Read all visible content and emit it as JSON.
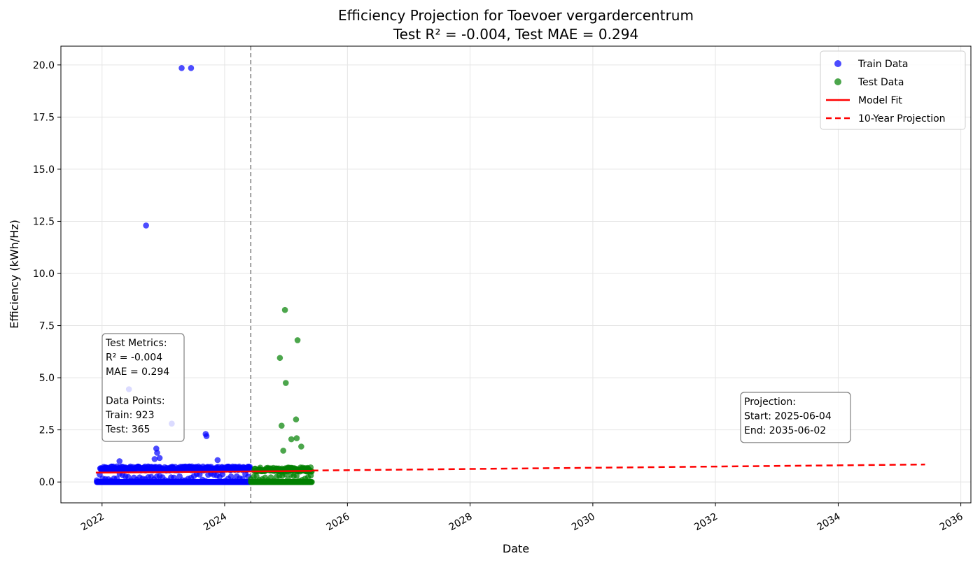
{
  "chart_data": {
    "type": "scatter",
    "title": "Efficiency Projection for Toevoer vergardercentrum",
    "subtitle": "Test R² = -0.004, Test MAE = 0.294",
    "xlabel": "Date",
    "ylabel": "Efficiency (kWh/Hz)",
    "x_scale": "date",
    "xlim": [
      "2021-05-01",
      "2036-03-01"
    ],
    "ylim": [
      -1.0,
      20.9
    ],
    "x_ticks": [
      "2022",
      "2024",
      "2026",
      "2028",
      "2030",
      "2032",
      "2034",
      "2036"
    ],
    "y_ticks": [
      "0.0",
      "2.5",
      "5.0",
      "7.5",
      "10.0",
      "12.5",
      "15.0",
      "17.5",
      "20.0"
    ],
    "y_tick_values": [
      0,
      2.5,
      5,
      7.5,
      10,
      12.5,
      15,
      17.5,
      20
    ],
    "grid": true,
    "legend_position": "top-right",
    "colors": {
      "train": "#0000ff",
      "test": "#008000",
      "fit": "#ff0000",
      "split": "#a0a0a0"
    },
    "series": [
      {
        "name": "Train Data",
        "marker": "circle",
        "range": [
          "2021-12-01",
          "2024-06-04"
        ],
        "typical_values": [
          0.0,
          0.55,
          0.75
        ],
        "points": [
          {
            "x": "2023-04-20",
            "y": 19.85
          },
          {
            "x": "2023-06-15",
            "y": 19.85
          },
          {
            "x": "2022-09-20",
            "y": 12.3
          },
          {
            "x": "2022-06-10",
            "y": 4.45
          },
          {
            "x": "2023-02-20",
            "y": 2.8
          },
          {
            "x": "2023-09-10",
            "y": 2.3
          },
          {
            "x": "2023-09-15",
            "y": 2.2
          },
          {
            "x": "2022-11-20",
            "y": 1.6
          },
          {
            "x": "2022-11-25",
            "y": 1.4
          },
          {
            "x": "2022-12-10",
            "y": 1.15
          },
          {
            "x": "2022-11-10",
            "y": 1.1
          },
          {
            "x": "2023-11-20",
            "y": 1.05
          },
          {
            "x": "2022-04-15",
            "y": 1.0
          }
        ]
      },
      {
        "name": "Test Data",
        "marker": "circle",
        "range": [
          "2024-06-05",
          "2025-06-04"
        ],
        "typical_values": [
          0.0,
          0.5,
          0.7
        ],
        "points": [
          {
            "x": "2024-12-25",
            "y": 8.25
          },
          {
            "x": "2025-03-10",
            "y": 6.8
          },
          {
            "x": "2024-11-25",
            "y": 5.95
          },
          {
            "x": "2024-12-30",
            "y": 4.75
          },
          {
            "x": "2025-03-01",
            "y": 3.0
          },
          {
            "x": "2024-12-05",
            "y": 2.7
          },
          {
            "x": "2025-03-05",
            "y": 2.1
          },
          {
            "x": "2025-02-01",
            "y": 2.05
          },
          {
            "x": "2025-04-01",
            "y": 1.7
          },
          {
            "x": "2024-12-15",
            "y": 1.5
          }
        ]
      },
      {
        "name": "Model Fit",
        "line": "solid",
        "x": [
          "2021-11-25",
          "2025-06-04"
        ],
        "y": [
          0.45,
          0.53
        ]
      },
      {
        "name": "10-Year Projection",
        "line": "dashed",
        "x": [
          "2025-06-04",
          "2035-06-02"
        ],
        "y": [
          0.55,
          0.84
        ]
      }
    ],
    "split_date": "2024-06-04",
    "annotations": {
      "metrics_box": [
        "Test Metrics:",
        "R² = -0.004",
        "MAE = 0.294",
        "",
        "Data Points:",
        "Train: 923",
        "Test: 365"
      ],
      "projection_box": [
        "Projection:",
        "Start: 2025-06-04",
        "End: 2035-06-02"
      ]
    }
  }
}
